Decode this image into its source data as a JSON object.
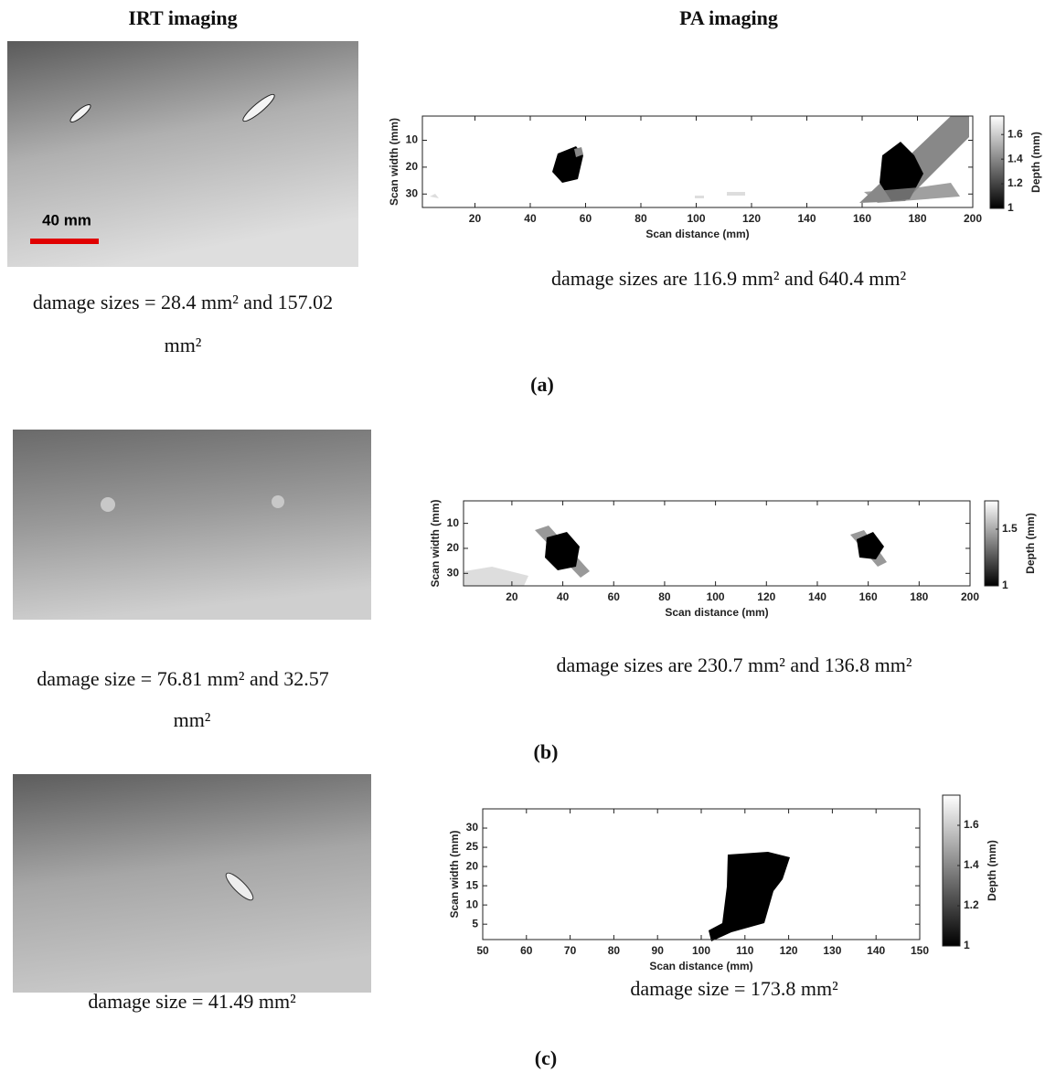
{
  "headers": {
    "irt": "IRT imaging",
    "pa": "PA imaging"
  },
  "panels": [
    {
      "label": "(a)",
      "irt": {
        "scale_bar": "40 mm",
        "caption": [
          "damage sizes = 28.4 mm² and 157.02",
          "mm²"
        ]
      },
      "pa": {
        "type": "heatmap",
        "xlabel": "Scan distance (mm)",
        "ylabel": "Scan width (mm)",
        "xlim": [
          1,
          200
        ],
        "xticks": [
          20,
          40,
          60,
          80,
          100,
          120,
          140,
          160,
          180,
          200
        ],
        "ylim": [
          1,
          35
        ],
        "yticks": [
          10,
          20,
          30
        ],
        "y_inverted": true,
        "colorbar": {
          "label": "Depth (mm)",
          "lim": [
            1,
            1.75
          ],
          "ticks": [
            1,
            1.2,
            1.4,
            1.6
          ]
        },
        "caption": "damage sizes are 116.9 mm² and 640.4 mm²"
      }
    },
    {
      "label": "(b)",
      "irt": {
        "caption": [
          "damage size = 76.81 mm² and 32.57",
          "mm²"
        ]
      },
      "pa": {
        "type": "heatmap",
        "xlabel": "Scan distance (mm)",
        "ylabel": "Scan width (mm)",
        "xlim": [
          1,
          200
        ],
        "xticks": [
          20,
          40,
          60,
          80,
          100,
          120,
          140,
          160,
          180,
          200
        ],
        "ylim": [
          1,
          35
        ],
        "yticks": [
          10,
          20,
          30
        ],
        "y_inverted": true,
        "colorbar": {
          "label": "Depth (mm)",
          "lim": [
            1,
            1.75
          ],
          "ticks": [
            1,
            1.5
          ]
        },
        "caption": "damage sizes are 230.7 mm² and 136.8 mm²"
      }
    },
    {
      "label": "(c)",
      "irt": {
        "caption": [
          "damage size = 41.49 mm²"
        ]
      },
      "pa": {
        "type": "heatmap",
        "xlabel": "Scan distance (mm)",
        "ylabel": "Scan width (mm)",
        "xlim": [
          50,
          150
        ],
        "xticks": [
          50,
          60,
          70,
          80,
          90,
          100,
          110,
          120,
          130,
          140,
          150
        ],
        "ylim": [
          1,
          35
        ],
        "yticks": [
          5,
          10,
          15,
          20,
          25,
          30
        ],
        "y_inverted": false,
        "colorbar": {
          "label": "Depth (mm)",
          "lim": [
            1,
            1.75
          ],
          "ticks": [
            1,
            1.2,
            1.4,
            1.6
          ]
        },
        "caption": "damage size = 173.8 mm²"
      }
    }
  ]
}
